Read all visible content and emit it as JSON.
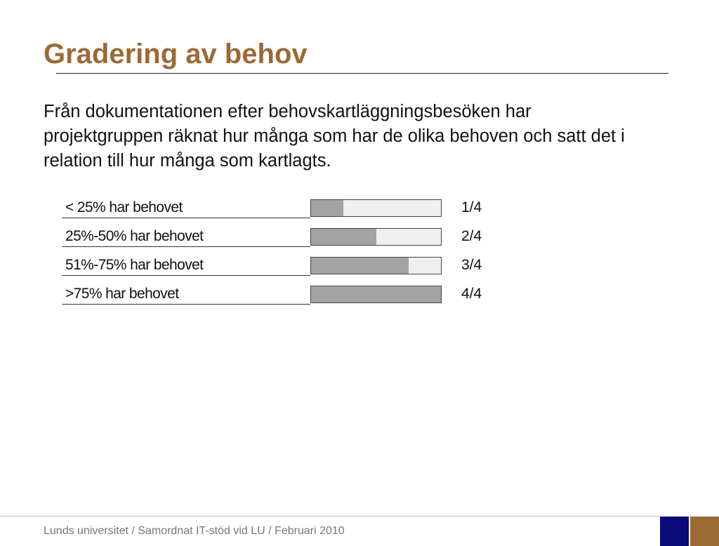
{
  "slide": {
    "title": "Gradering av behov",
    "body": "Från dokumentationen efter behovskartläggningsbesöken har projektgruppen räknat hur många som har de olika behoven och satt det i relation till hur många som kartlagts."
  },
  "levels": [
    {
      "label": "< 25% har behovet",
      "fraction": "1/4",
      "fill": 0.25
    },
    {
      "label": "25%-50% har behovet",
      "fraction": "2/4",
      "fill": 0.5
    },
    {
      "label": "51%-75% har behovet",
      "fraction": "3/4",
      "fill": 0.75
    },
    {
      "label": ">75% har behovet",
      "fraction": "4/4",
      "fill": 1.0
    }
  ],
  "footer": {
    "text": "Lunds universitet / Samordnat IT-stöd vid LU / Februari 2010"
  },
  "colors": {
    "title": "#9b6a35",
    "bar_fill": "#a3a3a3",
    "bar_empty": "#efefef",
    "footer_blue": "#0a0a7a",
    "footer_brown": "#9b6a35"
  }
}
